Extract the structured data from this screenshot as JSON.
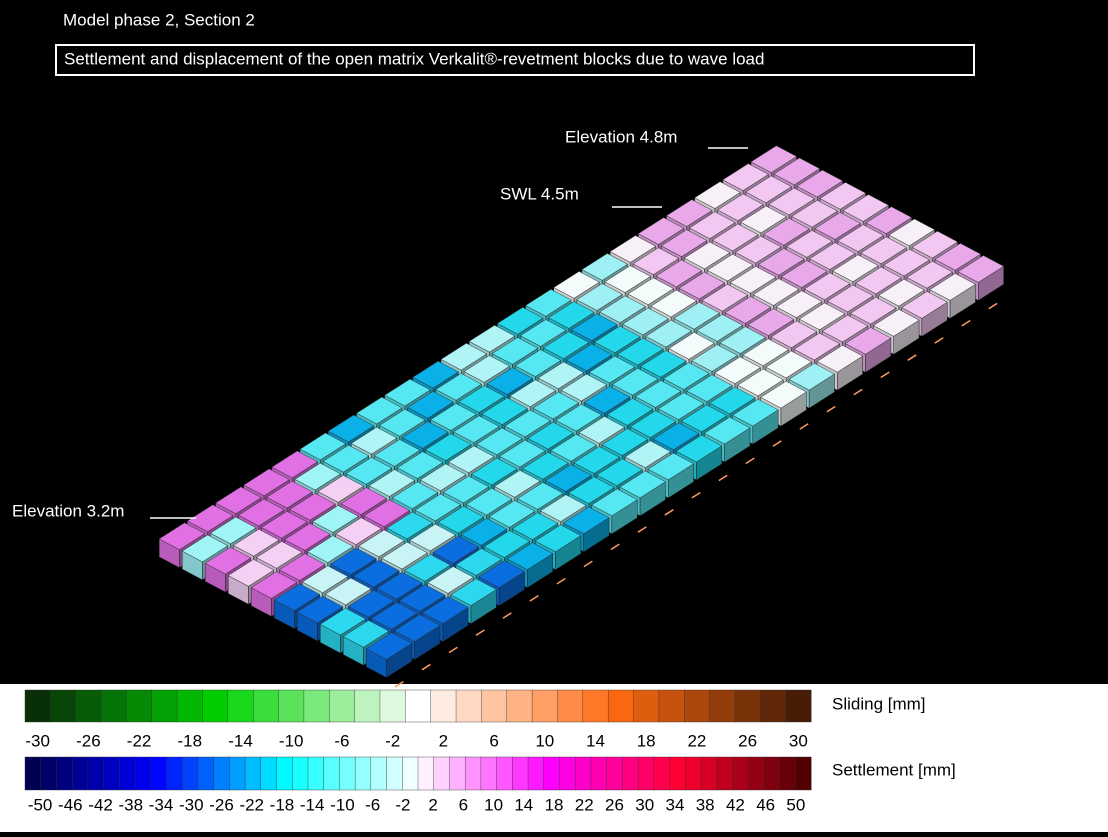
{
  "header": {
    "title": "Model phase 2, Section 2",
    "subtitle": "Settlement and displacement of the open matrix Verkalit®-revetment blocks due to wave load"
  },
  "annotations": [
    {
      "text": "Elevation 4.8m"
    },
    {
      "text": "SWL 4.5m"
    },
    {
      "text": "Elevation 3.2m"
    }
  ],
  "colorbars": [
    {
      "title": "Sliding [mm]",
      "range": [
        -31,
        31
      ],
      "ticks": [
        -30,
        -26,
        -22,
        -18,
        -14,
        -10,
        -6,
        -2,
        2,
        6,
        10,
        14,
        18,
        22,
        26,
        30
      ],
      "stops": [
        "#0a240a",
        "#00d400",
        "#ffffff",
        "#ff6a10",
        "#3a1806"
      ]
    },
    {
      "title": "Settlement [mm]",
      "range": [
        -52,
        52
      ],
      "ticks": [
        -50,
        -46,
        -42,
        -38,
        -34,
        -30,
        -26,
        -22,
        -18,
        -14,
        -10,
        -6,
        -2,
        2,
        6,
        10,
        14,
        18,
        22,
        26,
        30,
        34,
        38,
        42,
        46,
        50
      ],
      "stops": [
        "#000048",
        "#0000ff",
        "#00ffff",
        "#ffffff",
        "#ff00ff",
        "#ff0030",
        "#480000"
      ]
    }
  ]
}
